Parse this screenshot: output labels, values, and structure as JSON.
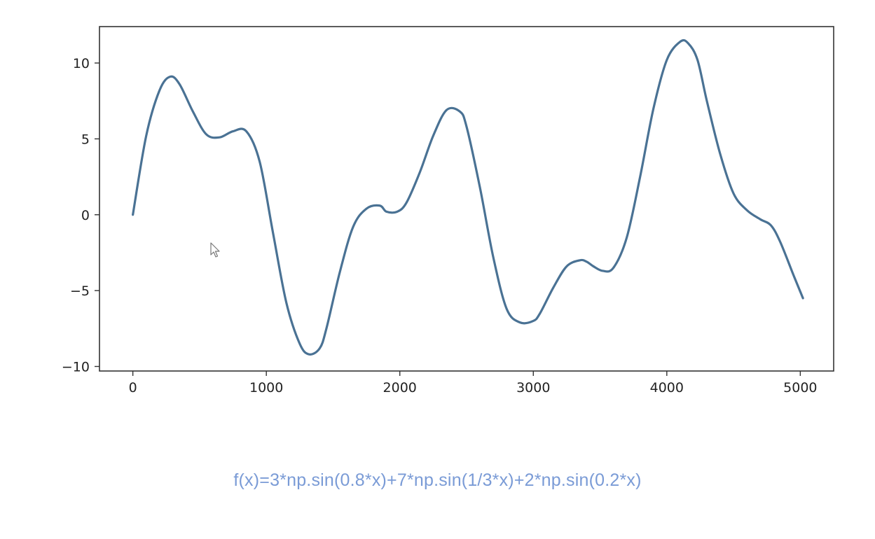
{
  "formula": "f(x)=3*np.sin(0.8*x)+7*np.sin(1/3*x)+2*np.sin(0.2*x)",
  "colors": {
    "line": "#4a7294",
    "formula": "#7a9bd6",
    "axes": "#333333"
  },
  "icons": {
    "cursor": "mouse-pointer-icon"
  },
  "chart_data": {
    "type": "line",
    "xlim": [
      -250,
      5250
    ],
    "ylim": [
      -10.3,
      12.4
    ],
    "xticks": [
      0,
      1000,
      2000,
      3000,
      4000,
      5000
    ],
    "yticks": [
      -10,
      -5,
      0,
      5,
      10
    ],
    "xtick_labels": [
      "0",
      "1000",
      "2000",
      "3000",
      "4000",
      "5000"
    ],
    "ytick_labels": [
      "−10",
      "−5",
      "0",
      "5",
      "10"
    ],
    "grid": false,
    "legend": "none",
    "series": [
      {
        "x": [
          0,
          100,
          200,
          280,
          350,
          450,
          550,
          650,
          750,
          850,
          950,
          1050,
          1150,
          1250,
          1320,
          1400,
          1450,
          1550,
          1650,
          1750,
          1850,
          1900,
          1980,
          2050,
          2150,
          2250,
          2350,
          2450,
          2500,
          2600,
          2700,
          2800,
          2900,
          3000,
          3050,
          3150,
          3250,
          3350,
          3400,
          3450,
          3520,
          3600,
          3700,
          3800,
          3900,
          4000,
          4100,
          4160,
          4230,
          4300,
          4400,
          4500,
          4600,
          4700,
          4780,
          4850,
          4950,
          5020
        ],
        "y": [
          0,
          5.2,
          8.2,
          9.1,
          8.6,
          6.8,
          5.3,
          5.1,
          5.5,
          5.5,
          3.5,
          -1.2,
          -5.8,
          -8.5,
          -9.2,
          -8.8,
          -7.5,
          -3.8,
          -0.8,
          0.4,
          0.6,
          0.2,
          0.2,
          0.8,
          2.8,
          5.2,
          6.9,
          6.8,
          5.8,
          1.8,
          -2.8,
          -6.2,
          -7.1,
          -7.0,
          -6.5,
          -4.8,
          -3.4,
          -3.0,
          -3.1,
          -3.4,
          -3.7,
          -3.5,
          -1.5,
          2.5,
          7.0,
          10.2,
          11.4,
          11.3,
          10.2,
          7.5,
          4.0,
          1.4,
          0.3,
          -0.3,
          -0.7,
          -1.8,
          -4.0,
          -5.5
        ]
      }
    ]
  }
}
